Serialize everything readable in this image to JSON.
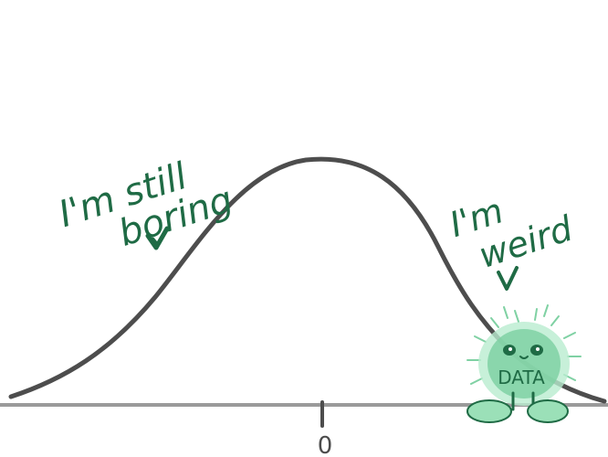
{
  "colors": {
    "curve": "#4d4d4d",
    "axis": "#9a9a9a",
    "ink_green": "#1f6b45",
    "creature_green": "#7fd1a3",
    "creature_glow": "#b9ecd0"
  },
  "annotations": {
    "left_line1": "I'm still",
    "left_line2": "boring",
    "right_line1": "I'm",
    "right_line2": "weird",
    "creature_label": "DATA"
  },
  "axis": {
    "center_label": "0"
  }
}
